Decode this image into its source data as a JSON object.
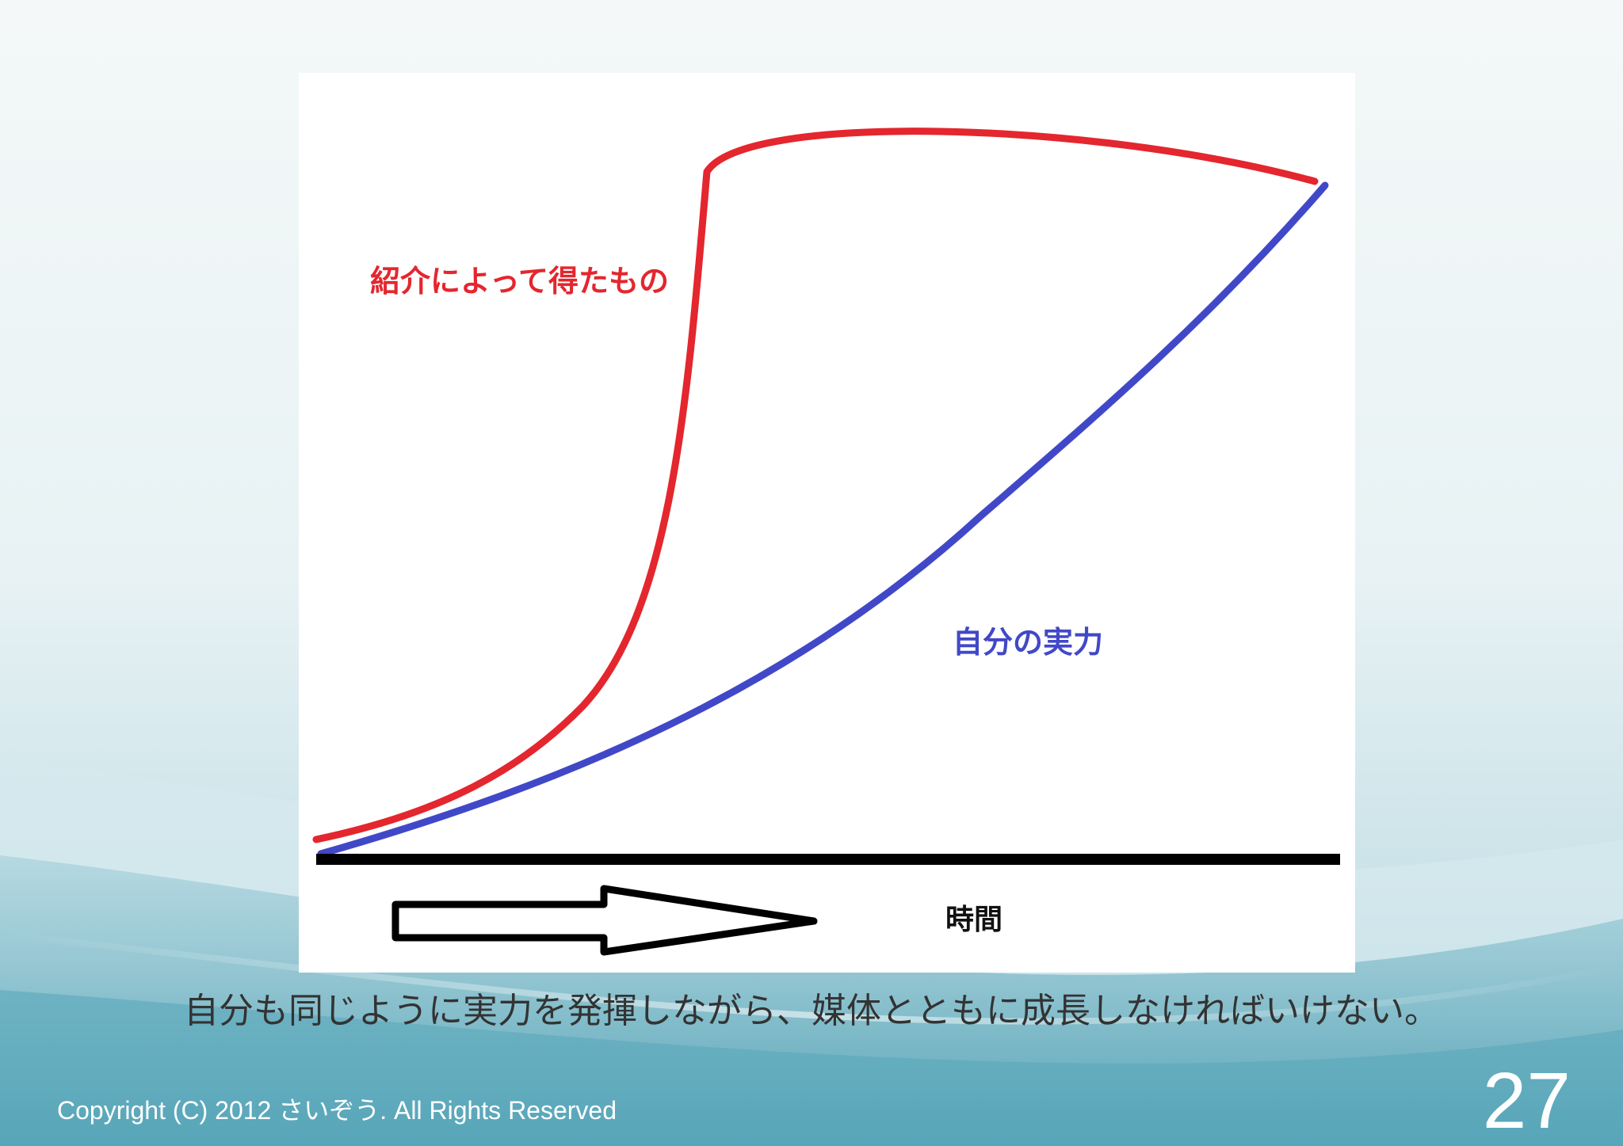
{
  "diagram": {
    "red_curve_label": "紹介によって得たもの",
    "blue_curve_label": "自分の実力",
    "time_axis_label": "時間",
    "red_color": "#e4262e",
    "blue_color": "#4148c8",
    "axis_color": "#000000",
    "arrow_icon": "right-arrow-icon"
  },
  "slide": {
    "caption": "自分も同じように実力を発揮しながら、媒体とともに成長しなければいけない。",
    "copyright": "Copyright (C) 2012 さいぞう. All Rights Reserved",
    "page_number": "27",
    "background_color": "#e6f1f3"
  }
}
